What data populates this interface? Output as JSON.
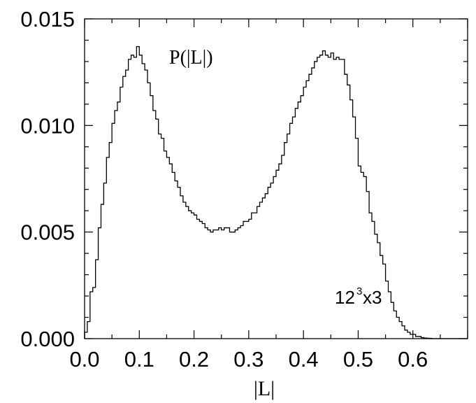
{
  "chart_data": {
    "type": "step",
    "xlabel": "|L|",
    "ylabel": "",
    "xlim": [
      0.0,
      0.7
    ],
    "ylim": [
      0.0,
      0.015
    ],
    "x_ticks": [
      "0.0",
      "0.1",
      "0.2",
      "0.3",
      "0.4",
      "0.5",
      "0.6"
    ],
    "y_ticks": [
      "0.000",
      "0.005",
      "0.010",
      "0.015"
    ],
    "annotations": {
      "curve_label": "P(|L|)",
      "lattice_base": "12",
      "lattice_exp": "3",
      "lattice_tail": "x3"
    },
    "grid": false,
    "series": [
      {
        "bin_width": 0.005,
        "x_start": 0.0,
        "values": [
          0.0003,
          0.0008,
          0.0022,
          0.0024,
          0.0037,
          0.0052,
          0.0063,
          0.0073,
          0.0085,
          0.0092,
          0.0101,
          0.0107,
          0.0111,
          0.0118,
          0.0123,
          0.0126,
          0.0131,
          0.0133,
          0.0132,
          0.0137,
          0.0133,
          0.0129,
          0.0126,
          0.012,
          0.0114,
          0.0107,
          0.0103,
          0.0096,
          0.0094,
          0.0088,
          0.0085,
          0.0082,
          0.0078,
          0.0074,
          0.0071,
          0.0067,
          0.0064,
          0.0062,
          0.006,
          0.0059,
          0.0058,
          0.0056,
          0.0055,
          0.0054,
          0.0052,
          0.0051,
          0.005,
          0.0051,
          0.0051,
          0.0052,
          0.0051,
          0.0052,
          0.0052,
          0.005,
          0.005,
          0.0051,
          0.0052,
          0.0053,
          0.0055,
          0.0055,
          0.0056,
          0.0059,
          0.0059,
          0.0062,
          0.0064,
          0.0066,
          0.0068,
          0.0071,
          0.0073,
          0.0076,
          0.0079,
          0.0082,
          0.0086,
          0.0092,
          0.0096,
          0.0101,
          0.0104,
          0.0108,
          0.0111,
          0.0114,
          0.0118,
          0.0121,
          0.0124,
          0.0127,
          0.013,
          0.0132,
          0.0133,
          0.0135,
          0.0133,
          0.0132,
          0.0134,
          0.0131,
          0.0132,
          0.0131,
          0.0131,
          0.0124,
          0.0119,
          0.0112,
          0.0104,
          0.0094,
          0.0081,
          0.0078,
          0.0076,
          0.0069,
          0.0059,
          0.0055,
          0.0049,
          0.0045,
          0.0039,
          0.0035,
          0.0027,
          0.0022,
          0.0017,
          0.0013,
          0.001,
          0.0008,
          0.0006,
          0.0004,
          0.0003,
          0.0002,
          0.0002,
          0.0001,
          0.0001,
          5e-05,
          3e-05,
          2e-05,
          1e-05,
          0.0,
          0.0,
          0.0,
          0.0,
          0.0,
          0.0,
          0.0,
          0.0,
          0.0,
          0.0,
          0.0,
          0.0,
          0.0
        ]
      }
    ]
  },
  "colors": {
    "line": "#000000",
    "background": "#ffffff"
  }
}
